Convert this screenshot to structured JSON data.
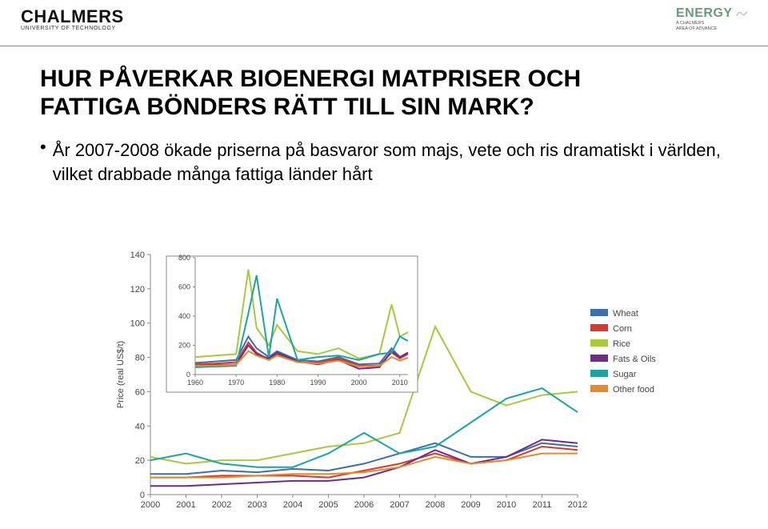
{
  "header": {
    "chalmers_word": "CHALMERS",
    "chalmers_sub": "UNIVERSITY OF TECHNOLOGY",
    "energy_word": "ENERGY",
    "energy_sub_1": "A CHALMERS",
    "energy_sub_2": "AREA OF ADVANCE"
  },
  "title_line1": "HUR PÅVERKAR BIOENERGI MATPRISER OCH",
  "title_line2": "FATTIGA BÖNDERS RÄTT TILL SIN MARK?",
  "bullet": "År 2007-2008 ökade priserna på basvaror som majs, vete och ris dramatiskt i världen, vilket drabbade många fattiga länder hårt",
  "chart": {
    "type": "line",
    "ylabel": "Price (real US$/t)",
    "main": {
      "xlim": [
        2000,
        2012
      ],
      "ylim": [
        0,
        140
      ],
      "yticks": [
        0,
        20,
        40,
        60,
        80,
        100,
        120,
        140
      ],
      "xticks": [
        2000,
        2001,
        2002,
        2003,
        2004,
        2005,
        2006,
        2007,
        2008,
        2009,
        2010,
        2011,
        2012
      ],
      "series": {
        "wheat": {
          "color": "#3a6fb0",
          "values": [
            12,
            12,
            14,
            13,
            15,
            14,
            18,
            24,
            30,
            22,
            22,
            30,
            28
          ]
        },
        "corn": {
          "color": "#d63a2e",
          "values": [
            10,
            10,
            11,
            11,
            11,
            10,
            14,
            18,
            24,
            18,
            20,
            28,
            26
          ]
        },
        "rice": {
          "color": "#a7c93c",
          "values": [
            22,
            18,
            20,
            20,
            24,
            28,
            30,
            36,
            98,
            60,
            52,
            58,
            60
          ]
        },
        "fats_oils": {
          "color": "#6b2d86",
          "values": [
            5,
            5,
            6,
            7,
            8,
            8,
            10,
            16,
            26,
            18,
            22,
            32,
            30
          ]
        },
        "sugar": {
          "color": "#1aa5a0",
          "values": [
            20,
            24,
            18,
            16,
            16,
            24,
            36,
            24,
            28,
            42,
            56,
            62,
            48
          ]
        },
        "other_food": {
          "color": "#e48a2c",
          "values": [
            10,
            10,
            10,
            11,
            12,
            12,
            13,
            16,
            22,
            18,
            20,
            24,
            24
          ]
        }
      }
    },
    "legend": {
      "items": [
        {
          "key": "wheat",
          "label": "Wheat",
          "color": "#3a6fb0"
        },
        {
          "key": "corn",
          "label": "Corn",
          "color": "#d63a2e"
        },
        {
          "key": "rice",
          "label": "Rice",
          "color": "#a7c93c"
        },
        {
          "key": "fats_oils",
          "label": "Fats & Oils",
          "color": "#6b2d86"
        },
        {
          "key": "sugar",
          "label": "Sugar",
          "color": "#1aa5a0"
        },
        {
          "key": "other_food",
          "label": "Other food",
          "color": "#e48a2c"
        }
      ]
    },
    "inset": {
      "xlim": [
        1960,
        2012
      ],
      "ylim": [
        0,
        800
      ],
      "yticks": [
        0,
        200,
        400,
        600,
        800
      ],
      "xticks": [
        1960,
        1970,
        1980,
        1990,
        2000,
        2010
      ],
      "series": {
        "wheat": {
          "color": "#3a6fb0",
          "values": {
            "1960": 80,
            "1965": 90,
            "1970": 100,
            "1973": 260,
            "1975": 180,
            "1978": 120,
            "1980": 160,
            "1985": 100,
            "1990": 90,
            "1995": 120,
            "2000": 70,
            "2005": 75,
            "2008": 180,
            "2010": 120,
            "2012": 150
          }
        },
        "corn": {
          "color": "#d63a2e",
          "values": {
            "1960": 70,
            "1965": 75,
            "1970": 85,
            "1973": 220,
            "1975": 150,
            "1978": 100,
            "1980": 140,
            "1985": 85,
            "1990": 80,
            "1995": 110,
            "2000": 60,
            "2005": 62,
            "2008": 150,
            "2010": 110,
            "2012": 140
          }
        },
        "rice": {
          "color": "#a7c93c",
          "values": {
            "1960": 120,
            "1965": 130,
            "1970": 140,
            "1973": 720,
            "1975": 320,
            "1978": 200,
            "1980": 340,
            "1985": 160,
            "1990": 140,
            "1995": 180,
            "2000": 110,
            "2005": 140,
            "2008": 480,
            "2010": 260,
            "2012": 290
          }
        },
        "fats_oils": {
          "color": "#6b2d86",
          "values": {
            "1960": 60,
            "1965": 65,
            "1970": 70,
            "1973": 200,
            "1975": 140,
            "1978": 110,
            "1980": 150,
            "1985": 90,
            "1990": 70,
            "1995": 100,
            "2000": 40,
            "2005": 50,
            "2008": 160,
            "2010": 120,
            "2012": 150
          }
        },
        "sugar": {
          "color": "#1aa5a0",
          "values": {
            "1960": 50,
            "1965": 55,
            "1970": 60,
            "1973": 420,
            "1975": 680,
            "1978": 120,
            "1980": 520,
            "1985": 100,
            "1990": 120,
            "1995": 130,
            "2000": 100,
            "2005": 140,
            "2008": 150,
            "2010": 260,
            "2012": 230
          }
        },
        "other_food": {
          "color": "#e48a2c",
          "values": {
            "1960": 60,
            "1965": 62,
            "1970": 68,
            "1973": 160,
            "1975": 130,
            "1978": 100,
            "1980": 130,
            "1985": 85,
            "1990": 75,
            "1995": 95,
            "2000": 55,
            "2005": 60,
            "2008": 120,
            "2010": 95,
            "2012": 115
          }
        }
      }
    },
    "colors": {
      "axis": "#888888",
      "text": "#444444",
      "background": "#ffffff",
      "inset_border": "#888888"
    },
    "font_size": {
      "ticks": 11,
      "legend": 11,
      "inset_ticks": 9,
      "ylabel": 11
    }
  }
}
